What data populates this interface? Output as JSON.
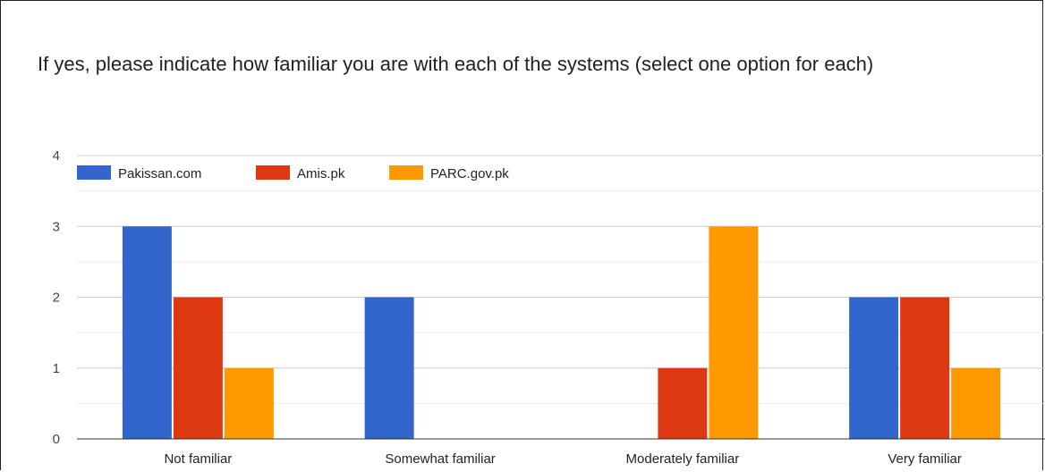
{
  "chart_data": {
    "type": "bar",
    "title": "If yes, please indicate how familiar you are with each of the systems (select one option for each)",
    "categories": [
      "Not familiar",
      "Somewhat familiar",
      "Moderately familiar",
      "Very familiar"
    ],
    "series": [
      {
        "name": "Pakissan.com",
        "values": [
          3,
          2,
          0,
          2
        ],
        "color": "#3366cc"
      },
      {
        "name": "Amis.pk",
        "values": [
          2,
          0,
          1,
          2
        ],
        "color": "#dc3912"
      },
      {
        "name": "PARC.gov.pk",
        "values": [
          1,
          0,
          3,
          1
        ],
        "color": "#ff9900"
      }
    ],
    "ylim": [
      0,
      4
    ],
    "yticks": [
      "0",
      "1",
      "2",
      "3",
      "4"
    ],
    "xlabel": "",
    "ylabel": "",
    "grid": true,
    "legend": "top-left"
  }
}
